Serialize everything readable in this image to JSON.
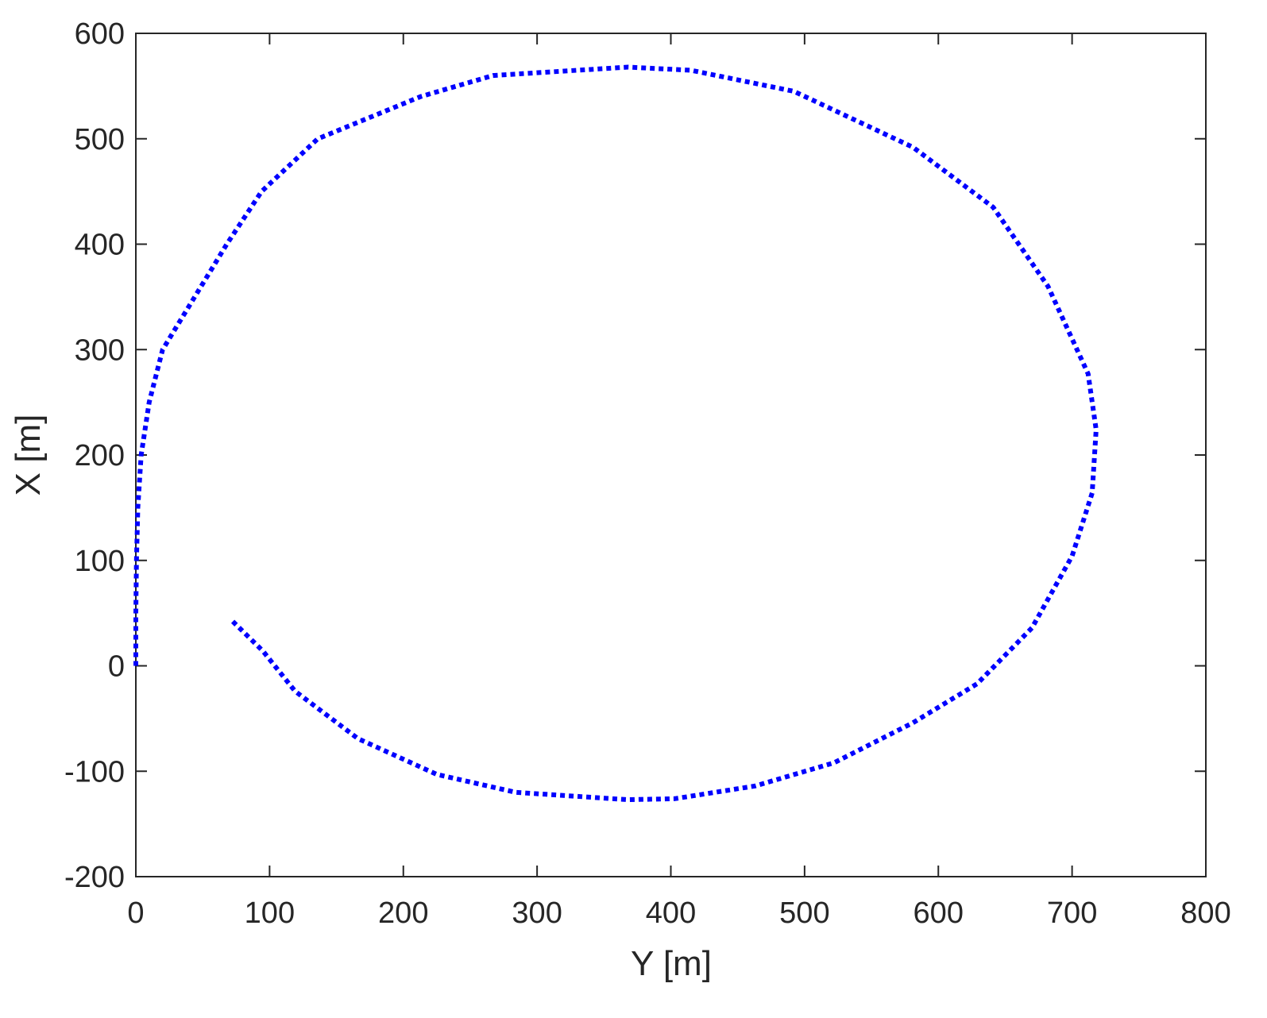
{
  "chart_data": {
    "type": "line",
    "xlabel": "Y [m]",
    "ylabel": "X [m]",
    "x": [
      0,
      0,
      0.5,
      1.5,
      4,
      10,
      20,
      68,
      94,
      136,
      213,
      267,
      368,
      415,
      492,
      581,
      641,
      682,
      712,
      718,
      715,
      700,
      670,
      629,
      581,
      522,
      463,
      403,
      368,
      284,
      225,
      166,
      119,
      95,
      71
    ],
    "values": [
      0,
      50,
      100,
      150,
      200,
      250,
      300,
      400,
      450,
      500,
      540,
      560,
      568,
      565,
      545,
      492,
      435,
      360,
      277,
      224,
      164,
      104,
      36,
      -17,
      -54,
      -92,
      -114,
      -126,
      -127,
      -120,
      -103,
      -69,
      -24,
      14,
      44
    ],
    "color": "#0000ff",
    "xlim": [
      0,
      800
    ],
    "ylim": [
      -200,
      600
    ],
    "xticks": [
      0,
      100,
      200,
      300,
      400,
      500,
      600,
      700,
      800
    ],
    "yticks": [
      -200,
      -100,
      0,
      100,
      200,
      300,
      400,
      500,
      600
    ]
  }
}
